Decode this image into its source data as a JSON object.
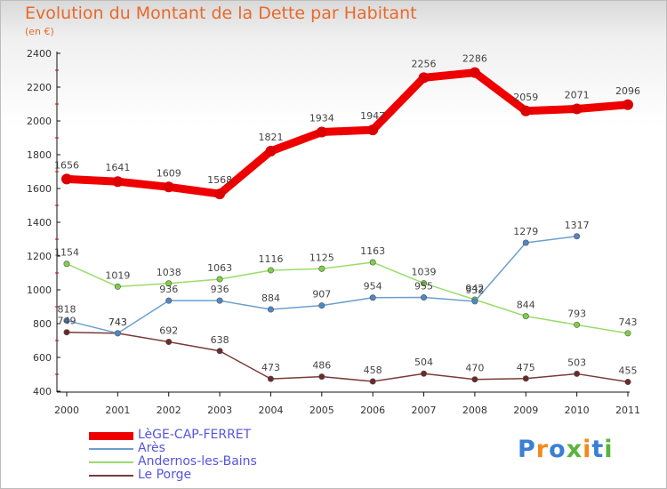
{
  "title": "Evolution du Montant de la Dette par Habitant",
  "subtitle": "(en €)",
  "logo": {
    "text": "Proxiti",
    "colors": [
      "#3a7fd5",
      "#f28a1c",
      "#3a7fd5",
      "#58b43c",
      "#f28a1c",
      "#3a7fd5",
      "#58b43c"
    ]
  },
  "chart_data": {
    "type": "line",
    "x": [
      "2000",
      "2001",
      "2002",
      "2003",
      "2004",
      "2005",
      "2006",
      "2007",
      "2008",
      "2009",
      "2010",
      "2011"
    ],
    "ylim": [
      400,
      2400
    ],
    "yticks": [
      400,
      600,
      800,
      1000,
      1200,
      1400,
      1600,
      1800,
      2000,
      2200,
      2400
    ],
    "grid": false,
    "legend_position": "bottom-left",
    "series": [
      {
        "name": "LèGE-CAP-FERRET",
        "color": "#ee0000",
        "marker_color": "#dd0000",
        "width": 9,
        "values": [
          1656,
          1641,
          1609,
          1568,
          1821,
          1934,
          1947,
          2256,
          2286,
          2059,
          2071,
          2096
        ],
        "labels": [
          "1656",
          "1641",
          "1609",
          "1568",
          "1821",
          "1934",
          "1947",
          "2256",
          "2286",
          "2059",
          "2071",
          "2096"
        ]
      },
      {
        "name": "Arès",
        "color": "#6b9fcf",
        "marker_color": "#4f86c6",
        "width": 1.5,
        "values": [
          818,
          743,
          936,
          936,
          884,
          907,
          954,
          955,
          932,
          1279,
          1317,
          null
        ],
        "labels": [
          "818",
          "743",
          "936",
          "936",
          "884",
          "907",
          "954",
          "955",
          "932",
          "1279",
          "1317",
          null
        ]
      },
      {
        "name": "Andernos-les-Bains",
        "color": "#9bdc6a",
        "marker_color": "#7fd046",
        "width": 1.5,
        "values": [
          1154,
          1019,
          1038,
          1063,
          1116,
          1125,
          1163,
          1039,
          942,
          844,
          793,
          743
        ],
        "labels": [
          "1154",
          "1019",
          "1038",
          "1063",
          "1116",
          "1125",
          "1163",
          "1039",
          "942",
          "844",
          "793",
          "743"
        ]
      },
      {
        "name": "Le Porge",
        "color": "#7a3a3a",
        "marker_color": "#6b2a2a",
        "width": 1.5,
        "values": [
          749,
          743,
          692,
          638,
          473,
          486,
          458,
          504,
          470,
          475,
          503,
          455
        ],
        "labels": [
          "749",
          "743",
          "692",
          "638",
          "473",
          "486",
          "458",
          "504",
          "470",
          "475",
          "503",
          "455"
        ]
      }
    ]
  }
}
